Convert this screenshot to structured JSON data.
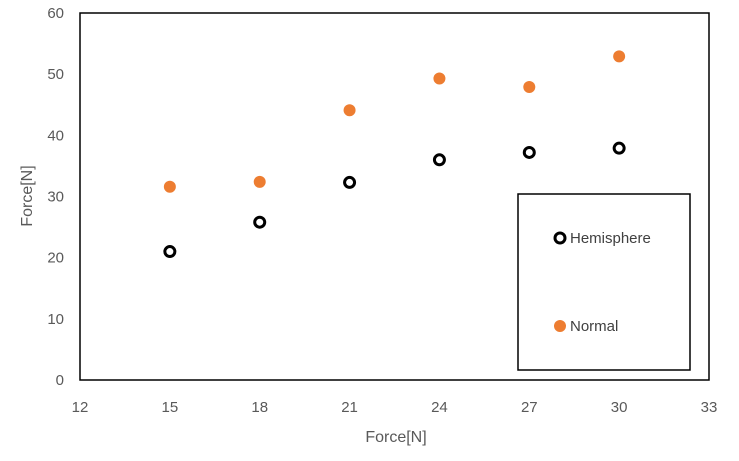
{
  "chart_data": {
    "type": "scatter",
    "title": "",
    "xlabel": "Force[N]",
    "ylabel": "Force[N]",
    "xlim": [
      12,
      33
    ],
    "ylim": [
      0,
      60
    ],
    "xticks": [
      12,
      15,
      18,
      21,
      24,
      27,
      30,
      33
    ],
    "yticks": [
      0,
      10,
      20,
      30,
      40,
      50,
      60
    ],
    "grid": false,
    "legend": "bottom-right",
    "series": [
      {
        "name": "Hemisphere",
        "marker": "hollow-circle",
        "color": "#000000",
        "x": [
          15,
          18,
          21,
          24,
          27,
          30
        ],
        "y": [
          21.0,
          25.8,
          32.3,
          36.0,
          37.2,
          37.9
        ]
      },
      {
        "name": "Normal",
        "marker": "filled-circle",
        "color": "#ED7D31",
        "x": [
          15,
          18,
          21,
          24,
          27,
          30
        ],
        "y": [
          31.6,
          32.4,
          44.1,
          49.3,
          47.9,
          52.9
        ]
      }
    ]
  }
}
